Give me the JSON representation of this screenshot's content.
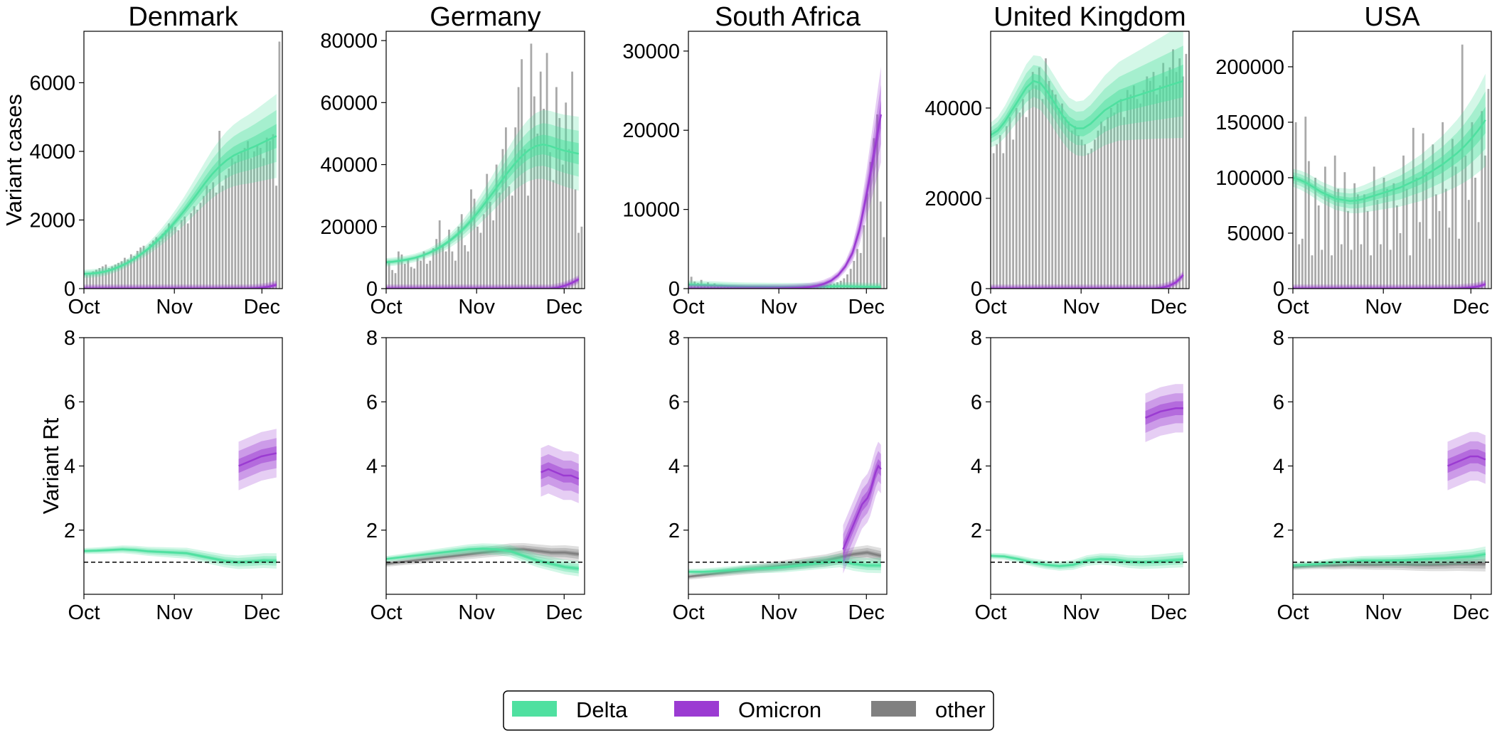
{
  "figure": {
    "legend": {
      "placement": "bottom-center",
      "items": [
        {
          "label": "Delta",
          "color": "#4fe0a0"
        },
        {
          "label": "Omicron",
          "color": "#9b3bd2"
        },
        {
          "label": "other",
          "color": "#808080"
        }
      ]
    },
    "row_labels": {
      "cases": "Variant cases",
      "rt": "Variant Rt"
    }
  },
  "chart_data": [
    {
      "type": "bar",
      "panel": "cases",
      "country": "Denmark",
      "title": "Denmark",
      "ylabel": "Variant cases",
      "xticks": [
        "Oct",
        "Nov",
        "Dec"
      ],
      "ylim": [
        0,
        7500
      ],
      "yticks": [
        0,
        2000,
        4000,
        6000
      ],
      "bar_values": [
        400,
        450,
        500,
        550,
        600,
        650,
        700,
        600,
        650,
        700,
        750,
        800,
        900,
        850,
        1000,
        950,
        1100,
        1200,
        1250,
        1150,
        1300,
        1400,
        1500,
        1400,
        1600,
        1700,
        1900,
        1850,
        1800,
        1700,
        2000,
        2100,
        1900,
        2200,
        2400,
        2300,
        2500,
        2700,
        3000,
        2900,
        3100,
        2800,
        4600,
        3000,
        3300,
        3500,
        3800,
        3700,
        3900,
        4000,
        4100,
        4300,
        3800,
        4000,
        4200,
        4100,
        3800,
        4400,
        4300,
        4500,
        3000,
        7200
      ],
      "series": [
        {
          "name": "Delta",
          "median": [
            430,
            440,
            460,
            500,
            560,
            640,
            740,
            860,
            1000,
            1160,
            1340,
            1540,
            1760,
            2000,
            2250,
            2520,
            2800,
            3080,
            3340,
            3560,
            3740,
            3880,
            3980,
            4060,
            4150,
            4250,
            4350,
            4450
          ]
        },
        {
          "name": "Omicron",
          "median": [
            0,
            0,
            0,
            0,
            0,
            0,
            0,
            0,
            0,
            0,
            0,
            0,
            0,
            0,
            0,
            0,
            0,
            0,
            0,
            0,
            0,
            0,
            0,
            0,
            10,
            30,
            60,
            110
          ]
        }
      ]
    },
    {
      "type": "bar",
      "panel": "cases",
      "country": "Germany",
      "title": "Germany",
      "ylabel": "",
      "xticks": [
        "Oct",
        "Nov",
        "Dec"
      ],
      "ylim": [
        0,
        83000
      ],
      "yticks": [
        0,
        20000,
        40000,
        60000,
        80000
      ],
      "bar_values": [
        9000,
        6000,
        5000,
        12000,
        11000,
        8000,
        9500,
        7000,
        6500,
        10000,
        9000,
        12000,
        8000,
        9000,
        13000,
        16000,
        22000,
        14000,
        12000,
        19000,
        12000,
        9000,
        20000,
        24000,
        14000,
        12000,
        32000,
        29000,
        20000,
        18000,
        24000,
        37000,
        28000,
        22000,
        40000,
        31000,
        45000,
        52000,
        33000,
        30000,
        52000,
        65000,
        74000,
        45000,
        30000,
        79000,
        62000,
        50000,
        70000,
        58000,
        76000,
        44000,
        35000,
        65000,
        55000,
        40000,
        60000,
        45000,
        70000,
        32000,
        18000,
        20000
      ],
      "series": [
        {
          "name": "Delta",
          "median": [
            8500,
            8700,
            9000,
            9400,
            9900,
            10600,
            11500,
            12600,
            14000,
            15600,
            17500,
            19700,
            22200,
            25000,
            28000,
            31000,
            34200,
            37300,
            40200,
            42700,
            44700,
            46000,
            46500,
            46000,
            45200,
            44500,
            44000,
            43500
          ]
        },
        {
          "name": "Omicron",
          "median": [
            0,
            0,
            0,
            0,
            0,
            0,
            0,
            0,
            0,
            0,
            0,
            0,
            0,
            0,
            0,
            0,
            0,
            0,
            0,
            0,
            0,
            0,
            0,
            0,
            300,
            900,
            1800,
            3000
          ]
        }
      ]
    },
    {
      "type": "bar",
      "panel": "cases",
      "country": "South Africa",
      "title": "South Africa",
      "ylabel": "",
      "xticks": [
        "Oct",
        "Nov",
        "Dec"
      ],
      "ylim": [
        0,
        32500
      ],
      "yticks": [
        0,
        10000,
        20000,
        30000
      ],
      "bar_values": [
        1500,
        900,
        700,
        1100,
        600,
        800,
        500,
        650,
        400,
        500,
        450,
        300,
        350,
        250,
        300,
        280,
        240,
        260,
        220,
        250,
        200,
        300,
        220,
        200,
        250,
        240,
        260,
        230,
        250,
        300,
        280,
        260,
        240,
        300,
        350,
        320,
        300,
        260,
        280,
        350,
        400,
        450,
        550,
        650,
        800,
        1000,
        1300,
        1800,
        2500,
        3500,
        5000,
        4500,
        8000,
        12000,
        16000,
        19000,
        22000,
        11000,
        6500
      ],
      "series": [
        {
          "name": "Delta",
          "median": [
            500,
            480,
            450,
            420,
            380,
            340,
            300,
            270,
            250,
            240,
            230,
            220,
            210,
            200,
            200,
            200,
            210,
            220,
            240,
            260,
            280,
            300,
            290,
            270,
            250,
            230,
            220,
            210
          ]
        },
        {
          "name": "Omicron",
          "median": [
            0,
            0,
            0,
            0,
            0,
            0,
            0,
            0,
            0,
            0,
            0,
            0,
            10,
            20,
            40,
            70,
            120,
            200,
            350,
            600,
            1000,
            1700,
            2800,
            4500,
            7500,
            12000,
            17000,
            22000
          ]
        }
      ]
    },
    {
      "type": "bar",
      "panel": "cases",
      "country": "United Kingdom",
      "title": "United Kingdom",
      "ylabel": "",
      "xticks": [
        "Oct",
        "Nov",
        "Dec"
      ],
      "ylim": [
        0,
        57000
      ],
      "yticks": [
        0,
        20000,
        40000
      ],
      "bar_values": [
        30000,
        32000,
        34000,
        30000,
        36000,
        38000,
        33000,
        40000,
        39000,
        42000,
        38000,
        44000,
        48000,
        45000,
        49000,
        42000,
        51000,
        46000,
        44000,
        43000,
        40000,
        41000,
        38000,
        37000,
        35000,
        36000,
        34000,
        33000,
        32000,
        30000,
        31000,
        33000,
        35000,
        37000,
        36000,
        38000,
        40000,
        39000,
        41000,
        42000,
        38000,
        44000,
        43000,
        45000,
        42000,
        41000,
        44000,
        47000,
        46000,
        48000,
        43000,
        45000,
        50000,
        47000,
        49000,
        53000,
        48000,
        51000,
        47000,
        52000
      ],
      "series": [
        {
          "name": "Delta",
          "median": [
            34000,
            35000,
            37000,
            39500,
            42000,
            44500,
            46000,
            45500,
            43500,
            41000,
            38500,
            36500,
            35500,
            35500,
            36500,
            38000,
            39500,
            40500,
            41500,
            42000,
            42500,
            43000,
            43500,
            44000,
            44500,
            45000,
            45500,
            46000
          ]
        },
        {
          "name": "Omicron",
          "median": [
            0,
            0,
            0,
            0,
            0,
            0,
            0,
            0,
            0,
            0,
            0,
            0,
            0,
            0,
            0,
            0,
            0,
            0,
            0,
            0,
            0,
            0,
            0,
            0,
            200,
            600,
            1400,
            3000
          ]
        }
      ]
    },
    {
      "type": "bar",
      "panel": "cases",
      "country": "USA",
      "title": "USA",
      "ylabel": "",
      "xticks": [
        "Oct",
        "Nov",
        "Dec"
      ],
      "ylim": [
        0,
        232000
      ],
      "yticks": [
        0,
        50000,
        100000,
        150000,
        200000
      ],
      "bar_values": [
        150000,
        40000,
        45000,
        155000,
        115000,
        30000,
        100000,
        75000,
        35000,
        110000,
        85000,
        30000,
        120000,
        90000,
        40000,
        105000,
        70000,
        35000,
        95000,
        85000,
        40000,
        85000,
        70000,
        30000,
        110000,
        80000,
        40000,
        100000,
        90000,
        35000,
        95000,
        75000,
        50000,
        120000,
        90000,
        30000,
        145000,
        100000,
        60000,
        140000,
        105000,
        45000,
        130000,
        85000,
        70000,
        150000,
        90000,
        55000,
        135000,
        110000,
        45000,
        220000,
        120000,
        80000,
        150000,
        100000,
        60000,
        160000,
        120000,
        180000
      ],
      "series": [
        {
          "name": "Delta",
          "median": [
            100000,
            98000,
            95000,
            91000,
            87000,
            84000,
            81000,
            80000,
            79000,
            79500,
            81000,
            83000,
            85000,
            87000,
            89000,
            91000,
            94000,
            97000,
            100000,
            104000,
            108000,
            112000,
            117000,
            122000,
            128000,
            135000,
            143000,
            152000
          ]
        },
        {
          "name": "Omicron",
          "median": [
            0,
            0,
            0,
            0,
            0,
            0,
            0,
            0,
            0,
            0,
            0,
            0,
            0,
            0,
            0,
            0,
            0,
            0,
            0,
            0,
            0,
            0,
            0,
            0,
            500,
            1000,
            2000,
            4000
          ]
        }
      ]
    },
    {
      "type": "line",
      "panel": "rt",
      "country": "Denmark",
      "ylabel": "Variant Rt",
      "xticks": [
        "Oct",
        "Nov",
        "Dec"
      ],
      "ylim": [
        0,
        8
      ],
      "yticks": [
        2,
        4,
        6,
        8
      ],
      "reference_line": 1,
      "series": [
        {
          "name": "Delta",
          "median": [
            1.35,
            1.36,
            1.38,
            1.4,
            1.38,
            1.34,
            1.32,
            1.3,
            1.28,
            1.2,
            1.12,
            1.04,
            1.0,
            1.02,
            1.05,
            1.04
          ]
        },
        {
          "name": "Omicron",
          "median": [
            4.0,
            4.1,
            4.2,
            4.3,
            4.35,
            4.4
          ]
        }
      ]
    },
    {
      "type": "line",
      "panel": "rt",
      "country": "Germany",
      "ylabel": "",
      "xticks": [
        "Oct",
        "Nov",
        "Dec"
      ],
      "ylim": [
        0,
        8
      ],
      "yticks": [
        2,
        4,
        6,
        8
      ],
      "reference_line": 1,
      "series": [
        {
          "name": "Delta",
          "median": [
            1.1,
            1.15,
            1.2,
            1.25,
            1.3,
            1.35,
            1.4,
            1.42,
            1.4,
            1.35,
            1.2,
            1.05,
            0.95,
            0.85,
            0.8
          ]
        },
        {
          "name": "Omicron",
          "median": [
            3.8,
            3.9,
            3.8,
            3.7,
            3.7,
            3.6
          ]
        },
        {
          "name": "other",
          "median": [
            0.95,
            1.0,
            1.05,
            1.1,
            1.15,
            1.2,
            1.25,
            1.3,
            1.35,
            1.4,
            1.4,
            1.35,
            1.3,
            1.3,
            1.25
          ]
        }
      ]
    },
    {
      "type": "line",
      "panel": "rt",
      "country": "South Africa",
      "ylabel": "",
      "xticks": [
        "Oct",
        "Nov",
        "Dec"
      ],
      "ylim": [
        0,
        8
      ],
      "yticks": [
        2,
        4,
        6,
        8
      ],
      "reference_line": 1,
      "series": [
        {
          "name": "Delta",
          "median": [
            0.7,
            0.7,
            0.72,
            0.75,
            0.78,
            0.8,
            0.82,
            0.85,
            0.9,
            0.95,
            1.0,
            1.05,
            0.95,
            0.9,
            0.9
          ]
        },
        {
          "name": "Omicron",
          "median": [
            1.4,
            1.6,
            1.8,
            2.0,
            2.2,
            2.4,
            2.6,
            2.8,
            2.9,
            3.0,
            3.2,
            3.5,
            3.8,
            4.0,
            3.9
          ]
        },
        {
          "name": "other",
          "median": [
            0.55,
            0.6,
            0.65,
            0.7,
            0.75,
            0.8,
            0.85,
            0.9,
            0.95,
            1.0,
            1.05,
            1.15,
            1.25,
            1.3,
            1.2
          ]
        }
      ]
    },
    {
      "type": "line",
      "panel": "rt",
      "country": "United Kingdom",
      "ylabel": "",
      "xticks": [
        "Oct",
        "Nov",
        "Dec"
      ],
      "ylim": [
        0,
        8
      ],
      "yticks": [
        2,
        4,
        6,
        8
      ],
      "reference_line": 1,
      "series": [
        {
          "name": "Delta",
          "median": [
            1.2,
            1.18,
            1.1,
            1.0,
            0.92,
            0.88,
            0.92,
            1.05,
            1.1,
            1.08,
            1.02,
            1.0,
            1.02,
            1.05,
            1.08
          ]
        },
        {
          "name": "Omicron",
          "median": [
            5.5,
            5.6,
            5.7,
            5.75,
            5.8,
            5.8
          ]
        }
      ]
    },
    {
      "type": "line",
      "panel": "rt",
      "country": "USA",
      "ylabel": "",
      "xticks": [
        "Oct",
        "Nov",
        "Dec"
      ],
      "ylim": [
        0,
        8
      ],
      "yticks": [
        2,
        4,
        6,
        8
      ],
      "reference_line": 1,
      "series": [
        {
          "name": "Delta",
          "median": [
            0.9,
            0.92,
            0.95,
            1.0,
            1.02,
            1.05,
            1.05,
            1.05,
            1.06,
            1.08,
            1.1,
            1.12,
            1.15,
            1.18,
            1.25
          ]
        },
        {
          "name": "Omicron",
          "median": [
            4.0,
            4.1,
            4.2,
            4.3,
            4.3,
            4.2
          ]
        },
        {
          "name": "other",
          "median": [
            0.85,
            0.88,
            0.9,
            0.9,
            0.92,
            0.92,
            0.92,
            0.93,
            0.93,
            0.92,
            0.92,
            0.93,
            0.95,
            0.95,
            0.95
          ]
        }
      ]
    }
  ]
}
